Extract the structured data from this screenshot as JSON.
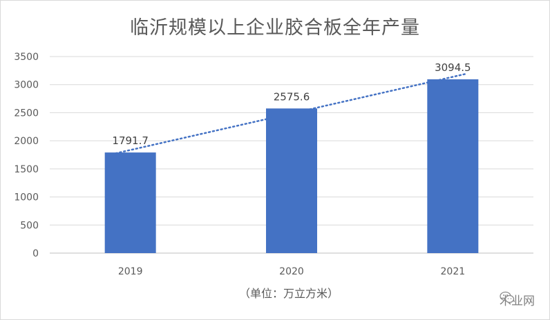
{
  "chart_data": {
    "type": "bar",
    "title": "临沂规模以上企业胶合板全年产量",
    "categories": [
      "2019",
      "2020",
      "2021"
    ],
    "values": [
      1791.7,
      2575.6,
      3094.5
    ],
    "data_labels": [
      "1791.7",
      "2575.6",
      "3094.5"
    ],
    "ylim": [
      0,
      3500
    ],
    "yticks": [
      "0",
      "500",
      "1000",
      "1500",
      "2000",
      "2500",
      "3000",
      "3500"
    ],
    "unit_note": "（单位：万立方米）",
    "trendline": "linear-dotted",
    "grid": true,
    "bar_color": "#4472c4"
  },
  "watermark": {
    "icon": "wechat-icon",
    "text": "木业网"
  }
}
